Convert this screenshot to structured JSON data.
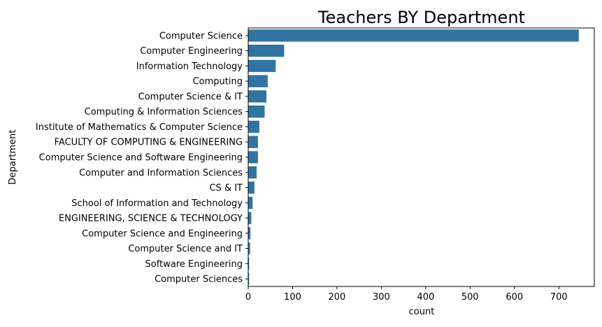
{
  "chart_data": {
    "type": "bar",
    "orientation": "horizontal",
    "title": "Teachers BY Department",
    "xlabel": "count",
    "ylabel": "Department",
    "xlim": [
      0,
      780
    ],
    "xticks": [
      0,
      100,
      200,
      300,
      400,
      500,
      600,
      700
    ],
    "grid": false,
    "bar_color": "#3274a1",
    "categories": [
      "Computer Science",
      "Computer Engineering",
      "Information Technology",
      "Computing",
      "Computer Science & IT",
      "Computing & Information Sciences",
      "Institute of Mathematics & Computer Science",
      "FACULTY OF COMPUTING & ENGINEERING",
      "Computer Science and Software Engineering",
      "Computer and Information Sciences",
      "CS & IT",
      "School of Information and Technology",
      "ENGINEERING, SCIENCE & TECHNOLOGY",
      "Computer Science and Engineering",
      "Computer Science and IT",
      "Software Engineering",
      "Computer Sciences"
    ],
    "values": [
      745,
      81,
      62,
      44,
      41,
      37,
      25,
      22,
      22,
      19,
      14,
      10,
      7,
      5,
      4,
      2,
      2
    ]
  }
}
